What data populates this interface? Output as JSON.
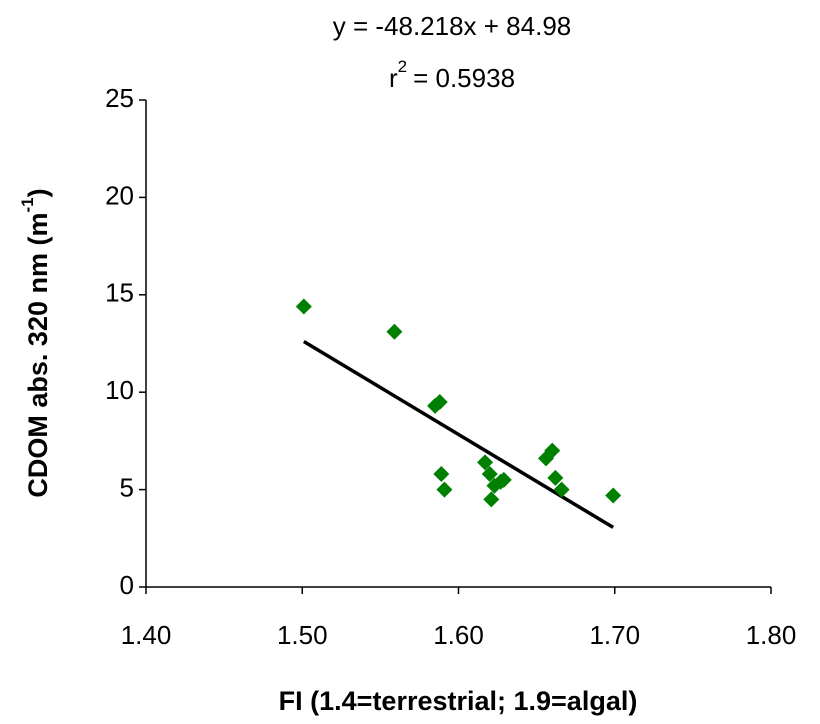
{
  "chart_data": {
    "type": "scatter",
    "equation": "y = -48.218x + 84.98",
    "r_symbol": "r",
    "r_exponent": "2",
    "r_value": "= 0.5938",
    "xlabel": "FI (1.4=terrestrial; 1.9=algal)",
    "ylabel": [
      "CDOM abs. 320 nm (m",
      "-1",
      ")"
    ],
    "x": [
      1.501,
      1.559,
      1.585,
      1.588,
      1.589,
      1.591,
      1.617,
      1.62,
      1.621,
      1.623,
      1.627,
      1.629,
      1.656,
      1.66,
      1.662,
      1.666,
      1.699
    ],
    "y": [
      14.4,
      13.1,
      9.3,
      9.5,
      5.8,
      5.0,
      6.4,
      5.8,
      4.5,
      5.2,
      5.4,
      5.5,
      6.6,
      7.0,
      5.6,
      5.0,
      4.7
    ],
    "color": "#008000",
    "trendline": {
      "x": [
        1.501,
        1.699
      ],
      "y": [
        12.605,
        3.058
      ],
      "color": "#000000"
    },
    "xlim": [
      1.4,
      1.8
    ],
    "xticks": [
      {
        "value": 1.4,
        "label": "1.40"
      },
      {
        "value": 1.5,
        "label": "1.50"
      },
      {
        "value": 1.6,
        "label": "1.60"
      },
      {
        "value": 1.7,
        "label": "1.70"
      },
      {
        "value": 1.8,
        "label": "1.80"
      }
    ],
    "ylim": [
      0,
      25
    ],
    "yticks": [
      0,
      5,
      10,
      15,
      20,
      25
    ],
    "grid": false
  }
}
